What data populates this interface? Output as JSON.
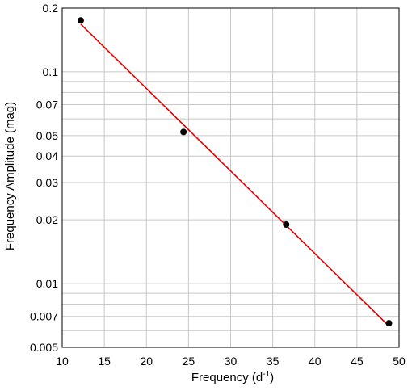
{
  "chart_data": {
    "type": "scatter",
    "xlabel": "Frequency (d",
    "xlabel_superscript": "-1",
    "xlabel_suffix": ")",
    "ylabel": "Frequency Amplitude (mag)",
    "xlim": [
      10,
      50
    ],
    "ylim": [
      0.005,
      0.2
    ],
    "yscale": "log",
    "grid": true,
    "x_ticks": [
      10,
      15,
      20,
      25,
      30,
      35,
      40,
      45,
      50
    ],
    "x_tick_labels": [
      "10",
      "15",
      "20",
      "25",
      "30",
      "35",
      "40",
      "45",
      "50"
    ],
    "y_ticks": [
      0.005,
      0.007,
      0.01,
      0.02,
      0.03,
      0.04,
      0.05,
      0.07,
      0.1,
      0.2
    ],
    "y_tick_labels": [
      "0.005",
      "0.007",
      "0.01",
      "0.02",
      "0.03",
      "0.04",
      "0.05",
      "0.07",
      "0.1",
      "0.2"
    ],
    "y_minor_grid": [
      0.006,
      0.008,
      0.009,
      0.06,
      0.08,
      0.09
    ],
    "series": [
      {
        "type": "scatter",
        "color": "#000000",
        "x": [
          12.2,
          24.4,
          36.6,
          48.8
        ],
        "y": [
          0.175,
          0.052,
          0.019,
          0.0065
        ]
      },
      {
        "type": "line",
        "color": "#e00000",
        "x": [
          12.2,
          48.8
        ],
        "y": [
          0.168,
          0.0063
        ]
      }
    ]
  }
}
